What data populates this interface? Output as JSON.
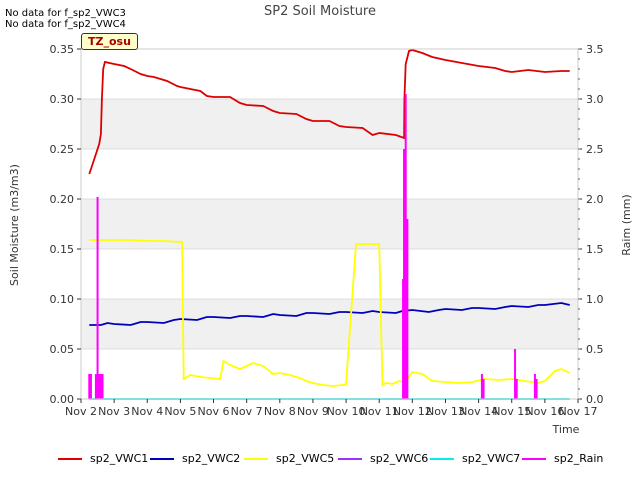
{
  "notes": [
    "No data for f_sp2_VWC3",
    "No data for f_sp2_VWC4"
  ],
  "tz_label": "TZ_osu",
  "chart_data": {
    "type": "line",
    "title": "SP2 Soil Moisture",
    "xlabel": "Time",
    "ylabel": "Soil Moisture (m3/m3)",
    "y2label": "Raim (mm)",
    "x_range": [
      0,
      15
    ],
    "ylim": [
      0,
      0.35
    ],
    "y2lim": [
      0,
      3.5
    ],
    "x_ticks": [
      {
        "x": 0,
        "label": "Nov 2"
      },
      {
        "x": 1,
        "label": "Nov 3"
      },
      {
        "x": 2,
        "label": "Nov 4"
      },
      {
        "x": 3,
        "label": "Nov 5"
      },
      {
        "x": 4,
        "label": "Nov 6"
      },
      {
        "x": 5,
        "label": "Nov 7"
      },
      {
        "x": 6,
        "label": "Nov 8"
      },
      {
        "x": 7,
        "label": "Nov 9"
      },
      {
        "x": 8,
        "label": "Nov 10"
      },
      {
        "x": 9,
        "label": "Nov 11"
      },
      {
        "x": 10,
        "label": "Nov 12"
      },
      {
        "x": 11,
        "label": "Nov 13"
      },
      {
        "x": 12,
        "label": "Nov 14"
      },
      {
        "x": 13,
        "label": "Nov 15"
      },
      {
        "x": 14,
        "label": "Nov 16"
      },
      {
        "x": 15,
        "label": "Nov 17"
      }
    ],
    "y_ticks": [
      "0.00",
      "0.05",
      "0.10",
      "0.15",
      "0.20",
      "0.25",
      "0.30",
      "0.35"
    ],
    "y2_ticks": [
      "0.0",
      "0.5",
      "1.0",
      "1.5",
      "2.0",
      "2.5",
      "3.0",
      "3.5"
    ],
    "bands": [
      [
        0.05,
        0.1
      ],
      [
        0.15,
        0.2
      ],
      [
        0.25,
        0.3
      ]
    ],
    "legend_position": "bottom",
    "series": [
      {
        "name": "sp2_VWC1",
        "color": "#dd0000",
        "axis": "left",
        "x": [
          0.25,
          0.4,
          0.55,
          0.6,
          0.63,
          0.67,
          0.72,
          1.0,
          1.3,
          1.5,
          1.8,
          2.0,
          2.2,
          2.6,
          2.9,
          3.0,
          3.3,
          3.6,
          3.8,
          4.0,
          4.5,
          4.8,
          5.0,
          5.5,
          5.8,
          6.0,
          6.5,
          6.8,
          7.0,
          7.5,
          7.8,
          8.0,
          8.5,
          8.8,
          9.0,
          9.5,
          9.75,
          9.76,
          9.8,
          9.9,
          10.0,
          10.3,
          10.6,
          11.0,
          11.5,
          12.0,
          12.5,
          12.8,
          13.0,
          13.5,
          14.0,
          14.5,
          14.75
        ],
        "y": [
          0.225,
          0.24,
          0.255,
          0.265,
          0.3,
          0.33,
          0.337,
          0.335,
          0.333,
          0.33,
          0.325,
          0.323,
          0.322,
          0.318,
          0.313,
          0.312,
          0.31,
          0.308,
          0.303,
          0.302,
          0.302,
          0.296,
          0.294,
          0.293,
          0.288,
          0.286,
          0.285,
          0.28,
          0.278,
          0.278,
          0.273,
          0.272,
          0.271,
          0.264,
          0.266,
          0.264,
          0.261,
          0.3,
          0.335,
          0.348,
          0.349,
          0.346,
          0.342,
          0.339,
          0.336,
          0.333,
          0.331,
          0.328,
          0.327,
          0.329,
          0.327,
          0.328,
          0.328
        ]
      },
      {
        "name": "sp2_VWC2",
        "color": "#0000bb",
        "axis": "left",
        "x": [
          0.25,
          0.6,
          0.8,
          1.0,
          1.5,
          1.8,
          2.0,
          2.5,
          2.8,
          3.0,
          3.5,
          3.8,
          4.0,
          4.5,
          4.8,
          5.0,
          5.5,
          5.8,
          6.0,
          6.5,
          6.8,
          7.0,
          7.5,
          7.8,
          8.0,
          8.5,
          8.8,
          9.0,
          9.5,
          9.7,
          10.0,
          10.5,
          10.8,
          11.0,
          11.5,
          11.8,
          12.0,
          12.5,
          12.8,
          13.0,
          13.5,
          13.8,
          14.0,
          14.5,
          14.75
        ],
        "y": [
          0.074,
          0.074,
          0.076,
          0.075,
          0.074,
          0.077,
          0.077,
          0.076,
          0.079,
          0.08,
          0.079,
          0.082,
          0.082,
          0.081,
          0.083,
          0.083,
          0.082,
          0.085,
          0.084,
          0.083,
          0.086,
          0.086,
          0.085,
          0.087,
          0.087,
          0.086,
          0.088,
          0.087,
          0.086,
          0.088,
          0.089,
          0.087,
          0.089,
          0.09,
          0.089,
          0.091,
          0.091,
          0.09,
          0.092,
          0.093,
          0.092,
          0.094,
          0.094,
          0.096,
          0.094
        ]
      },
      {
        "name": "sp2_VWC5",
        "color": "#ffff00",
        "axis": "left",
        "x": [
          0.25,
          0.5,
          1.0,
          1.5,
          2.0,
          2.5,
          3.0,
          3.05,
          3.1,
          3.3,
          3.6,
          3.9,
          4.2,
          4.3,
          4.5,
          4.8,
          5.2,
          5.5,
          5.8,
          6.0,
          6.3,
          6.6,
          6.8,
          7.0,
          7.3,
          7.6,
          7.9,
          8.0,
          8.3,
          8.5,
          8.6,
          8.7,
          9.0,
          9.1,
          9.2,
          9.4,
          9.6,
          9.8,
          10.0,
          10.3,
          10.6,
          11.0,
          11.4,
          11.8,
          12.2,
          12.6,
          13.0,
          13.4,
          13.8,
          14.0,
          14.3,
          14.5,
          14.75
        ],
        "y": [
          0.159,
          0.159,
          0.159,
          0.159,
          0.158,
          0.158,
          0.157,
          0.157,
          0.02,
          0.024,
          0.022,
          0.021,
          0.02,
          0.038,
          0.034,
          0.03,
          0.036,
          0.033,
          0.025,
          0.026,
          0.024,
          0.021,
          0.018,
          0.016,
          0.014,
          0.013,
          0.014,
          0.015,
          0.155,
          0.155,
          0.155,
          0.155,
          0.155,
          0.014,
          0.016,
          0.015,
          0.018,
          0.017,
          0.027,
          0.025,
          0.018,
          0.017,
          0.016,
          0.017,
          0.02,
          0.019,
          0.02,
          0.018,
          0.016,
          0.018,
          0.028,
          0.03,
          0.026
        ]
      },
      {
        "name": "sp2_VWC6",
        "color": "#9933ff",
        "axis": "left",
        "x": [],
        "y": []
      },
      {
        "name": "sp2_VWC7",
        "color": "#00eeee",
        "axis": "left",
        "x": [
          0.25,
          14.75
        ],
        "y": [
          0.0,
          0.0
        ]
      },
      {
        "name": "sp2_Rain",
        "color": "#ff00ff",
        "axis": "right",
        "x": [
          0.25,
          0.3,
          0.45,
          0.5,
          0.52,
          0.55,
          0.6,
          0.65,
          9.72,
          9.75,
          9.8,
          9.85,
          12.1,
          12.15,
          13.1,
          13.15,
          13.7,
          13.75
        ],
        "y": [
          0.25,
          0.25,
          0.25,
          2.02,
          0.25,
          0.25,
          0.25,
          0.25,
          1.2,
          2.5,
          3.05,
          1.8,
          0.25,
          0.2,
          0.5,
          0.2,
          0.25,
          0.2
        ]
      }
    ]
  }
}
